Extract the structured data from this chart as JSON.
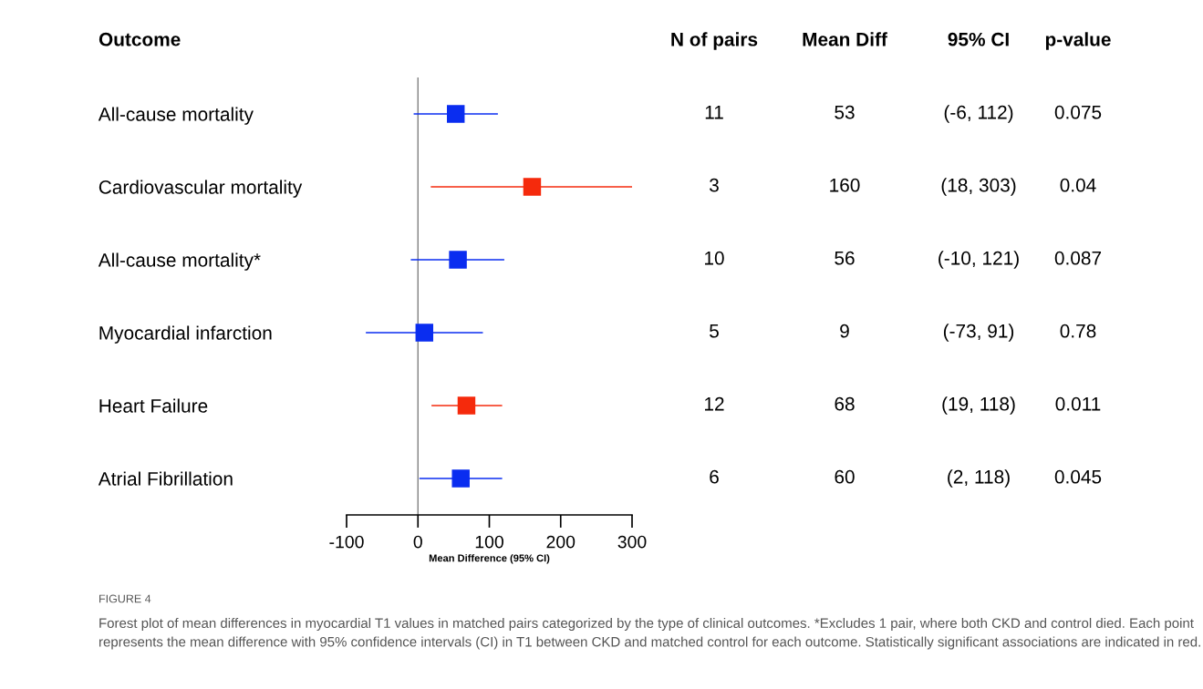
{
  "chart_data": {
    "type": "scatter",
    "orientation": "horizontal",
    "title": "FIGURE 4",
    "subtitle": "Forest plot of mean differences in myocardial T1 values in matched pairs categorized by the type of clinical outcomes. *Excludes 1 pair, where both CKD and control died. Each point represents the mean difference with 95% confidence intervals (CI) in T1 between CKD and matched control for each outcome. Statistically significant associations are indicated in red.",
    "ylabel": "Outcome",
    "xlabel": "Mean Difference (95% CI)",
    "categories": [
      "All-cause mortality",
      "Cardiovascular mortality",
      "All-cause mortality*",
      "Myocardial infarction",
      "Heart Failure",
      "Atrial Fibrillation"
    ],
    "values": [
      53,
      160,
      56,
      9,
      68,
      60
    ],
    "errors": [
      [
        -6,
        112
      ],
      [
        18,
        303
      ],
      [
        -10,
        121
      ],
      [
        -73,
        91
      ],
      [
        19,
        118
      ],
      [
        2,
        118
      ]
    ],
    "colors": [
      "#0a2df0",
      "#f52a0c",
      "#0a2df0",
      "#0a2df0",
      "#f52a0c",
      "#0a2df0"
    ],
    "marker": "square",
    "xlim": [
      -100,
      300
    ],
    "xticks": [
      -100,
      0,
      100,
      200,
      300
    ],
    "ref_lines": [
      {
        "axis": "x",
        "value": 0,
        "color": "#808080"
      }
    ],
    "annotations": [
      "N of pairs",
      "Mean Diff",
      "95% CI",
      "p-value",
      "11",
      "53",
      "(-6, 112)",
      "0.075",
      "3",
      "160",
      "(18, 303)",
      "0.04",
      "10",
      "56",
      "(-10, 121)",
      "0.087",
      "5",
      "9",
      "(-73, 91)",
      "0.78",
      "12",
      "68",
      "(19, 118)",
      "0.011",
      "6",
      "60",
      "(2, 118)",
      "0.045"
    ]
  }
}
